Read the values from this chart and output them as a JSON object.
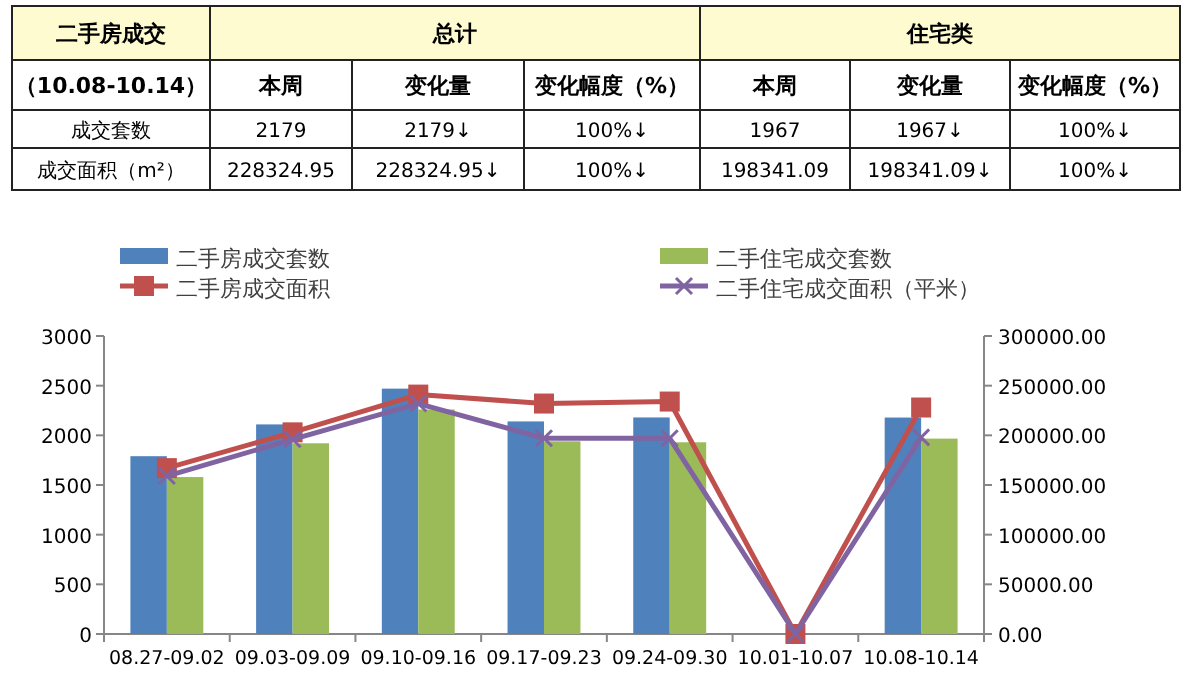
{
  "chart_data": [
    {
      "type": "other",
      "annotations": [
        "二手房成交",
        "总计",
        "住宅类",
        "（10.08-10.14）",
        "本周",
        "变化量",
        "变化幅度（%）",
        "本周",
        "变化量",
        "变化幅度（%）",
        "成交套数",
        "2179",
        "2179↓",
        "100%↓",
        "1967",
        "1967↓",
        "100%↓",
        "成交面积（m²）",
        "228324.95",
        "228324.95↓",
        "100%↓",
        "198341.09",
        "198341.09↓",
        "100%↓"
      ]
    },
    {
      "type": "bar",
      "categories": [
        "08.27-09.02",
        "09.03-09.09",
        "09.10-09.16",
        "09.17-09.23",
        "09.24-09.30",
        "10.01-10.07",
        "10.08-10.14"
      ],
      "series": [
        {
          "name": "二手房成交套数",
          "type": "bar",
          "color": "#4f81bd",
          "values": [
            1790,
            2110,
            2470,
            2140,
            2180,
            0,
            2179
          ]
        },
        {
          "name": "二手住宅成交套数",
          "type": "bar",
          "color": "#9bbb59",
          "values": [
            1580,
            1920,
            2260,
            1940,
            1930,
            0,
            1967
          ]
        },
        {
          "name": "二手房成交面积",
          "type": "line",
          "axis": "y2",
          "marker": "square",
          "color": "#c0504d",
          "values": [
            167000,
            203000,
            241000,
            232000,
            234000,
            0,
            228000
          ]
        },
        {
          "name": "二手住宅成交面积（平米）",
          "type": "line",
          "axis": "y2",
          "marker": "cross",
          "color": "#8064a2",
          "values": [
            159000,
            196000,
            232000,
            197000,
            197000,
            0,
            198000
          ]
        }
      ],
      "ylim": [
        0,
        3000
      ],
      "yticks": [
        0,
        500,
        1000,
        1500,
        2000,
        2500,
        3000
      ],
      "y2lim": [
        0,
        300000
      ],
      "y2ticks": [
        {
          "value": 0,
          "label": "0.00"
        },
        {
          "value": 50000,
          "label": "50000.00"
        },
        {
          "value": 100000,
          "label": "100000.00"
        },
        {
          "value": 150000,
          "label": "150000.00"
        },
        {
          "value": 200000,
          "label": "200000.00"
        },
        {
          "value": 250000,
          "label": "250000.00"
        },
        {
          "value": 300000,
          "label": "300000.00"
        }
      ],
      "grid": false,
      "legend": "top"
    }
  ]
}
